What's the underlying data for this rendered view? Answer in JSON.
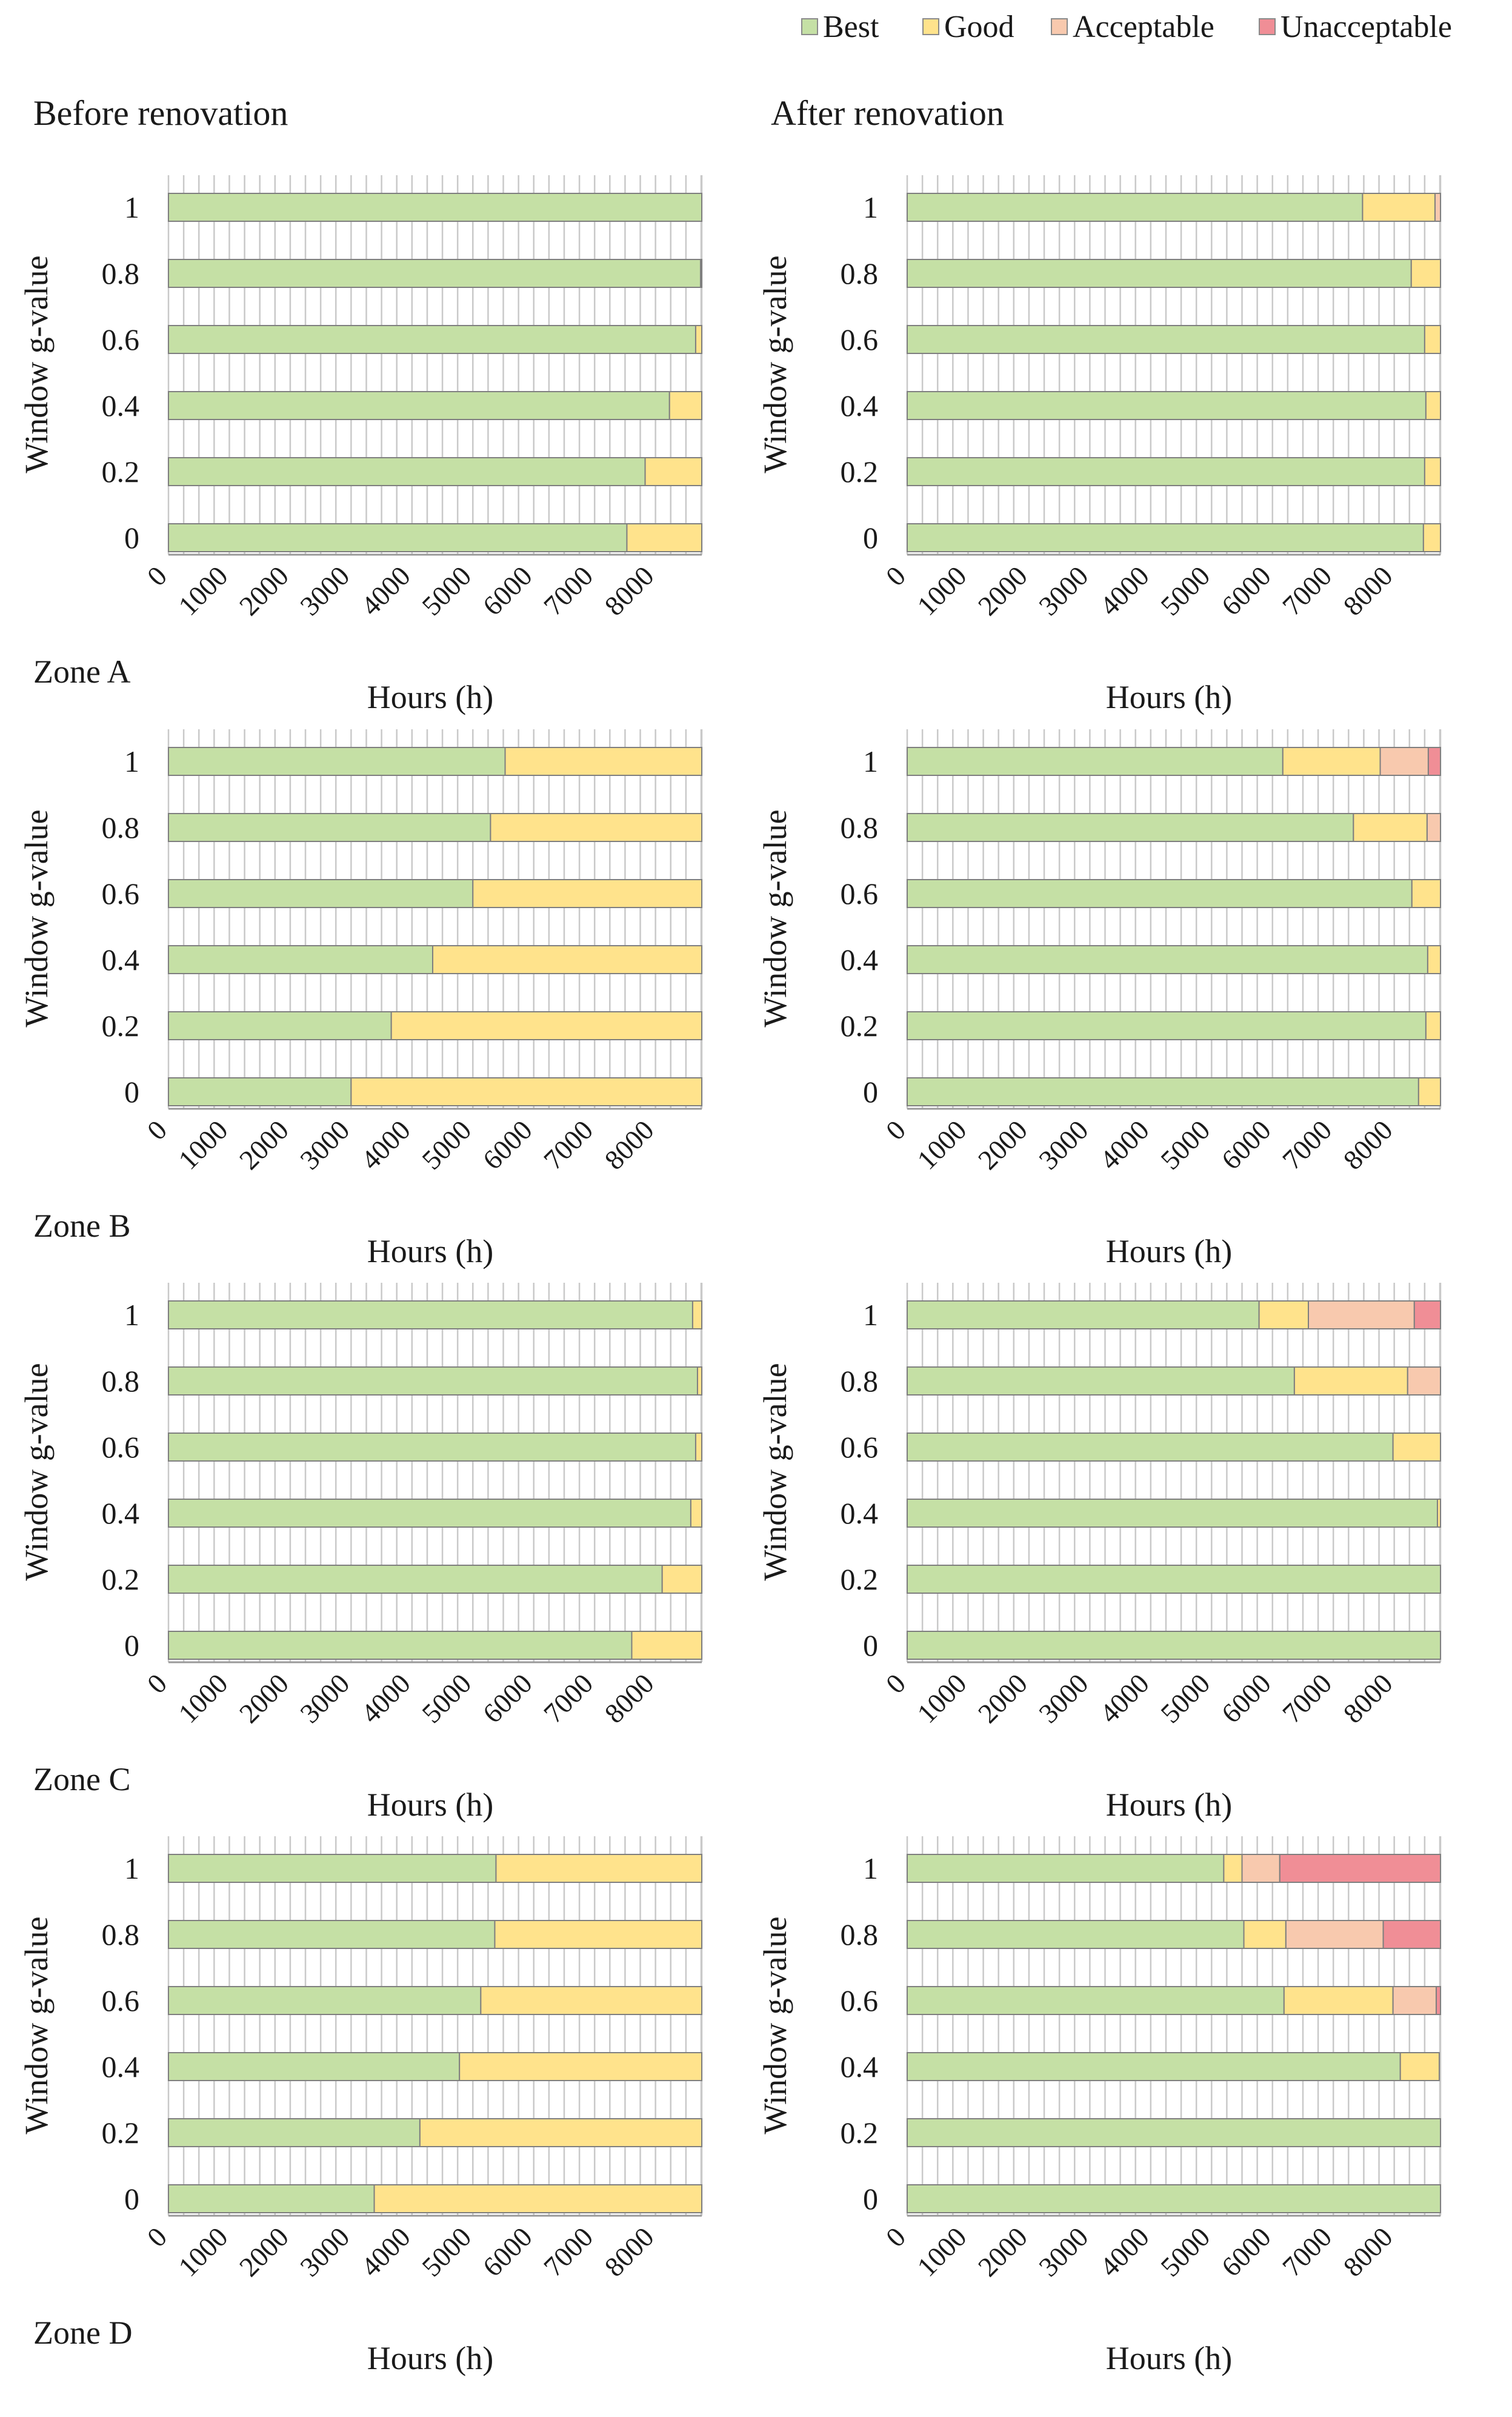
{
  "legend": [
    {
      "label": "Best",
      "color": "#C5E0A5"
    },
    {
      "label": "Good",
      "color": "#FFE38C"
    },
    {
      "label": "Acceptable",
      "color": "#F8C9AE"
    },
    {
      "label": "Unacceptable",
      "color": "#F08E96"
    }
  ],
  "column_titles": [
    "Before renovation",
    "After renovation"
  ],
  "chart_data": [
    {
      "type": "bar",
      "zone": "Zone A",
      "panel": "Before renovation",
      "xlabel": "Hours (h)",
      "ylabel": "Window g-value",
      "categories": [
        "1",
        "0.8",
        "0.6",
        "0.4",
        "0.2",
        "0"
      ],
      "xlim": [
        0,
        8760
      ],
      "xticks": [
        0,
        1000,
        2000,
        3000,
        4000,
        5000,
        6000,
        7000,
        8000
      ],
      "series": [
        {
          "name": "Best",
          "values": [
            8760,
            8740,
            8660,
            8230,
            7830,
            7530
          ]
        },
        {
          "name": "Good",
          "values": [
            0,
            20,
            100,
            530,
            930,
            1230
          ]
        },
        {
          "name": "Acceptable",
          "values": [
            0,
            0,
            0,
            0,
            0,
            0
          ]
        },
        {
          "name": "Unacceptable",
          "values": [
            0,
            0,
            0,
            0,
            0,
            0
          ]
        }
      ]
    },
    {
      "type": "bar",
      "zone": "Zone A",
      "panel": "After renovation",
      "xlabel": "Hours (h)",
      "ylabel": "Window g-value",
      "categories": [
        "1",
        "0.8",
        "0.6",
        "0.4",
        "0.2",
        "0"
      ],
      "xlim": [
        0,
        8760
      ],
      "xticks": [
        0,
        1000,
        2000,
        3000,
        4000,
        5000,
        6000,
        7000,
        8000
      ],
      "series": [
        {
          "name": "Best",
          "values": [
            7480,
            8280,
            8500,
            8520,
            8500,
            8480
          ]
        },
        {
          "name": "Good",
          "values": [
            1190,
            480,
            260,
            240,
            260,
            280
          ]
        },
        {
          "name": "Acceptable",
          "values": [
            90,
            0,
            0,
            0,
            0,
            0
          ]
        },
        {
          "name": "Unacceptable",
          "values": [
            0,
            0,
            0,
            0,
            0,
            0
          ]
        }
      ]
    },
    {
      "type": "bar",
      "zone": "Zone B",
      "panel": "Before renovation",
      "xlabel": "Hours (h)",
      "ylabel": "Window g-value",
      "categories": [
        "1",
        "0.8",
        "0.6",
        "0.4",
        "0.2",
        "0"
      ],
      "xlim": [
        0,
        8760
      ],
      "xticks": [
        0,
        1000,
        2000,
        3000,
        4000,
        5000,
        6000,
        7000,
        8000
      ],
      "series": [
        {
          "name": "Best",
          "values": [
            5530,
            5290,
            5000,
            4340,
            3660,
            3000
          ]
        },
        {
          "name": "Good",
          "values": [
            3230,
            3470,
            3760,
            4420,
            5100,
            5760
          ]
        },
        {
          "name": "Acceptable",
          "values": [
            0,
            0,
            0,
            0,
            0,
            0
          ]
        },
        {
          "name": "Unacceptable",
          "values": [
            0,
            0,
            0,
            0,
            0,
            0
          ]
        }
      ]
    },
    {
      "type": "bar",
      "zone": "Zone B",
      "panel": "After renovation",
      "xlabel": "Hours (h)",
      "ylabel": "Window g-value",
      "categories": [
        "1",
        "0.8",
        "0.6",
        "0.4",
        "0.2",
        "0"
      ],
      "xlim": [
        0,
        8760
      ],
      "xticks": [
        0,
        1000,
        2000,
        3000,
        4000,
        5000,
        6000,
        7000,
        8000
      ],
      "series": [
        {
          "name": "Best",
          "values": [
            6170,
            7330,
            8290,
            8550,
            8520,
            8400
          ]
        },
        {
          "name": "Good",
          "values": [
            1600,
            1210,
            470,
            210,
            240,
            360
          ]
        },
        {
          "name": "Acceptable",
          "values": [
            790,
            220,
            0,
            0,
            0,
            0
          ]
        },
        {
          "name": "Unacceptable",
          "values": [
            200,
            0,
            0,
            0,
            0,
            0
          ]
        }
      ]
    },
    {
      "type": "bar",
      "zone": "Zone C",
      "panel": "Before renovation",
      "xlabel": "Hours (h)",
      "ylabel": "Window g-value",
      "categories": [
        "1",
        "0.8",
        "0.6",
        "0.4",
        "0.2",
        "0"
      ],
      "xlim": [
        0,
        8760
      ],
      "xticks": [
        0,
        1000,
        2000,
        3000,
        4000,
        5000,
        6000,
        7000,
        8000
      ],
      "series": [
        {
          "name": "Best",
          "values": [
            8610,
            8690,
            8660,
            8580,
            8110,
            7610
          ]
        },
        {
          "name": "Good",
          "values": [
            150,
            70,
            100,
            180,
            650,
            1150
          ]
        },
        {
          "name": "Acceptable",
          "values": [
            0,
            0,
            0,
            0,
            0,
            0
          ]
        },
        {
          "name": "Unacceptable",
          "values": [
            0,
            0,
            0,
            0,
            0,
            0
          ]
        }
      ]
    },
    {
      "type": "bar",
      "zone": "Zone C",
      "panel": "After renovation",
      "xlabel": "Hours (h)",
      "ylabel": "Window g-value",
      "categories": [
        "1",
        "0.8",
        "0.6",
        "0.4",
        "0.2",
        "0"
      ],
      "xlim": [
        0,
        8760
      ],
      "xticks": [
        0,
        1000,
        2000,
        3000,
        4000,
        5000,
        6000,
        7000,
        8000
      ],
      "series": [
        {
          "name": "Best",
          "values": [
            5780,
            6360,
            7980,
            8710,
            8760,
            8760
          ]
        },
        {
          "name": "Good",
          "values": [
            810,
            1860,
            780,
            50,
            0,
            0
          ]
        },
        {
          "name": "Acceptable",
          "values": [
            1740,
            540,
            0,
            0,
            0,
            0
          ]
        },
        {
          "name": "Unacceptable",
          "values": [
            430,
            0,
            0,
            0,
            0,
            0
          ]
        }
      ]
    },
    {
      "type": "bar",
      "zone": "Zone D",
      "panel": "Before renovation",
      "xlabel": "Hours (h)",
      "ylabel": "Window g-value",
      "categories": [
        "1",
        "0.8",
        "0.6",
        "0.4",
        "0.2",
        "0"
      ],
      "xlim": [
        0,
        8760
      ],
      "xticks": [
        0,
        1000,
        2000,
        3000,
        4000,
        5000,
        6000,
        7000,
        8000
      ],
      "series": [
        {
          "name": "Best",
          "values": [
            5380,
            5360,
            5130,
            4780,
            4130,
            3380
          ]
        },
        {
          "name": "Good",
          "values": [
            3380,
            3400,
            3630,
            3980,
            4630,
            5380
          ]
        },
        {
          "name": "Acceptable",
          "values": [
            0,
            0,
            0,
            0,
            0,
            0
          ]
        },
        {
          "name": "Unacceptable",
          "values": [
            0,
            0,
            0,
            0,
            0,
            0
          ]
        }
      ]
    },
    {
      "type": "bar",
      "zone": "Zone D",
      "panel": "After renovation",
      "xlabel": "Hours (h)",
      "ylabel": "Window g-value",
      "categories": [
        "1",
        "0.8",
        "0.6",
        "0.4",
        "0.2",
        "0"
      ],
      "xlim": [
        0,
        8760
      ],
      "xticks": [
        0,
        1000,
        2000,
        3000,
        4000,
        5000,
        6000,
        7000,
        8000
      ],
      "series": [
        {
          "name": "Best",
          "values": [
            5200,
            5530,
            6190,
            8100,
            8760,
            8760
          ]
        },
        {
          "name": "Good",
          "values": [
            300,
            690,
            1790,
            640,
            0,
            0
          ]
        },
        {
          "name": "Acceptable",
          "values": [
            620,
            1600,
            710,
            0,
            0,
            0
          ]
        },
        {
          "name": "Unacceptable",
          "values": [
            2640,
            940,
            70,
            0,
            0,
            0
          ]
        }
      ]
    }
  ]
}
